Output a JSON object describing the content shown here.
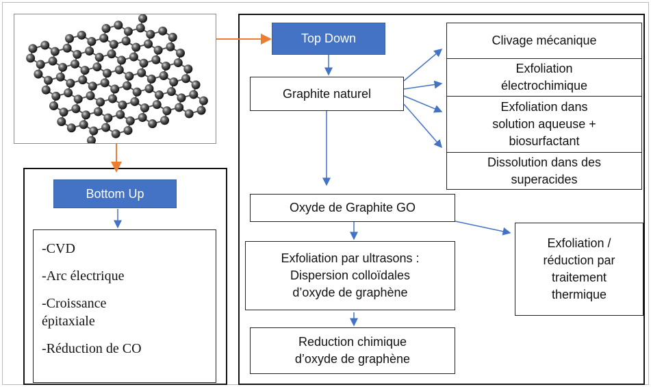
{
  "graphene_image": {
    "alt": null
  },
  "bottom_up": {
    "title": "Bottom Up",
    "methods": [
      [
        "-CVD"
      ],
      [
        "-Arc électrique"
      ],
      [
        "-Croissance",
        "épitaxiale"
      ],
      [
        "-Réduction de CO"
      ]
    ]
  },
  "top_down": {
    "title": "Top Down",
    "source": "Graphite naturel",
    "methods": [
      [
        "Clivage mécanique"
      ],
      [
        "Exfoliation",
        "électrochimique"
      ],
      [
        "Exfoliation dans",
        "solution aqueuse +",
        "biosurfactant"
      ],
      [
        "Dissolution dans des",
        "superacides"
      ]
    ],
    "oxide": "Oxyde de Graphite GO",
    "ultrasound": [
      "Exfoliation par ultrasons :",
      "Dispersion colloïdales",
      "d’oxyde de graphène"
    ],
    "chemical_reduction": [
      "Reduction chimique",
      "d’oxyde de graphène"
    ],
    "thermal": [
      "Exfoliation /",
      "réduction par",
      "traitement",
      "thermique"
    ]
  }
}
